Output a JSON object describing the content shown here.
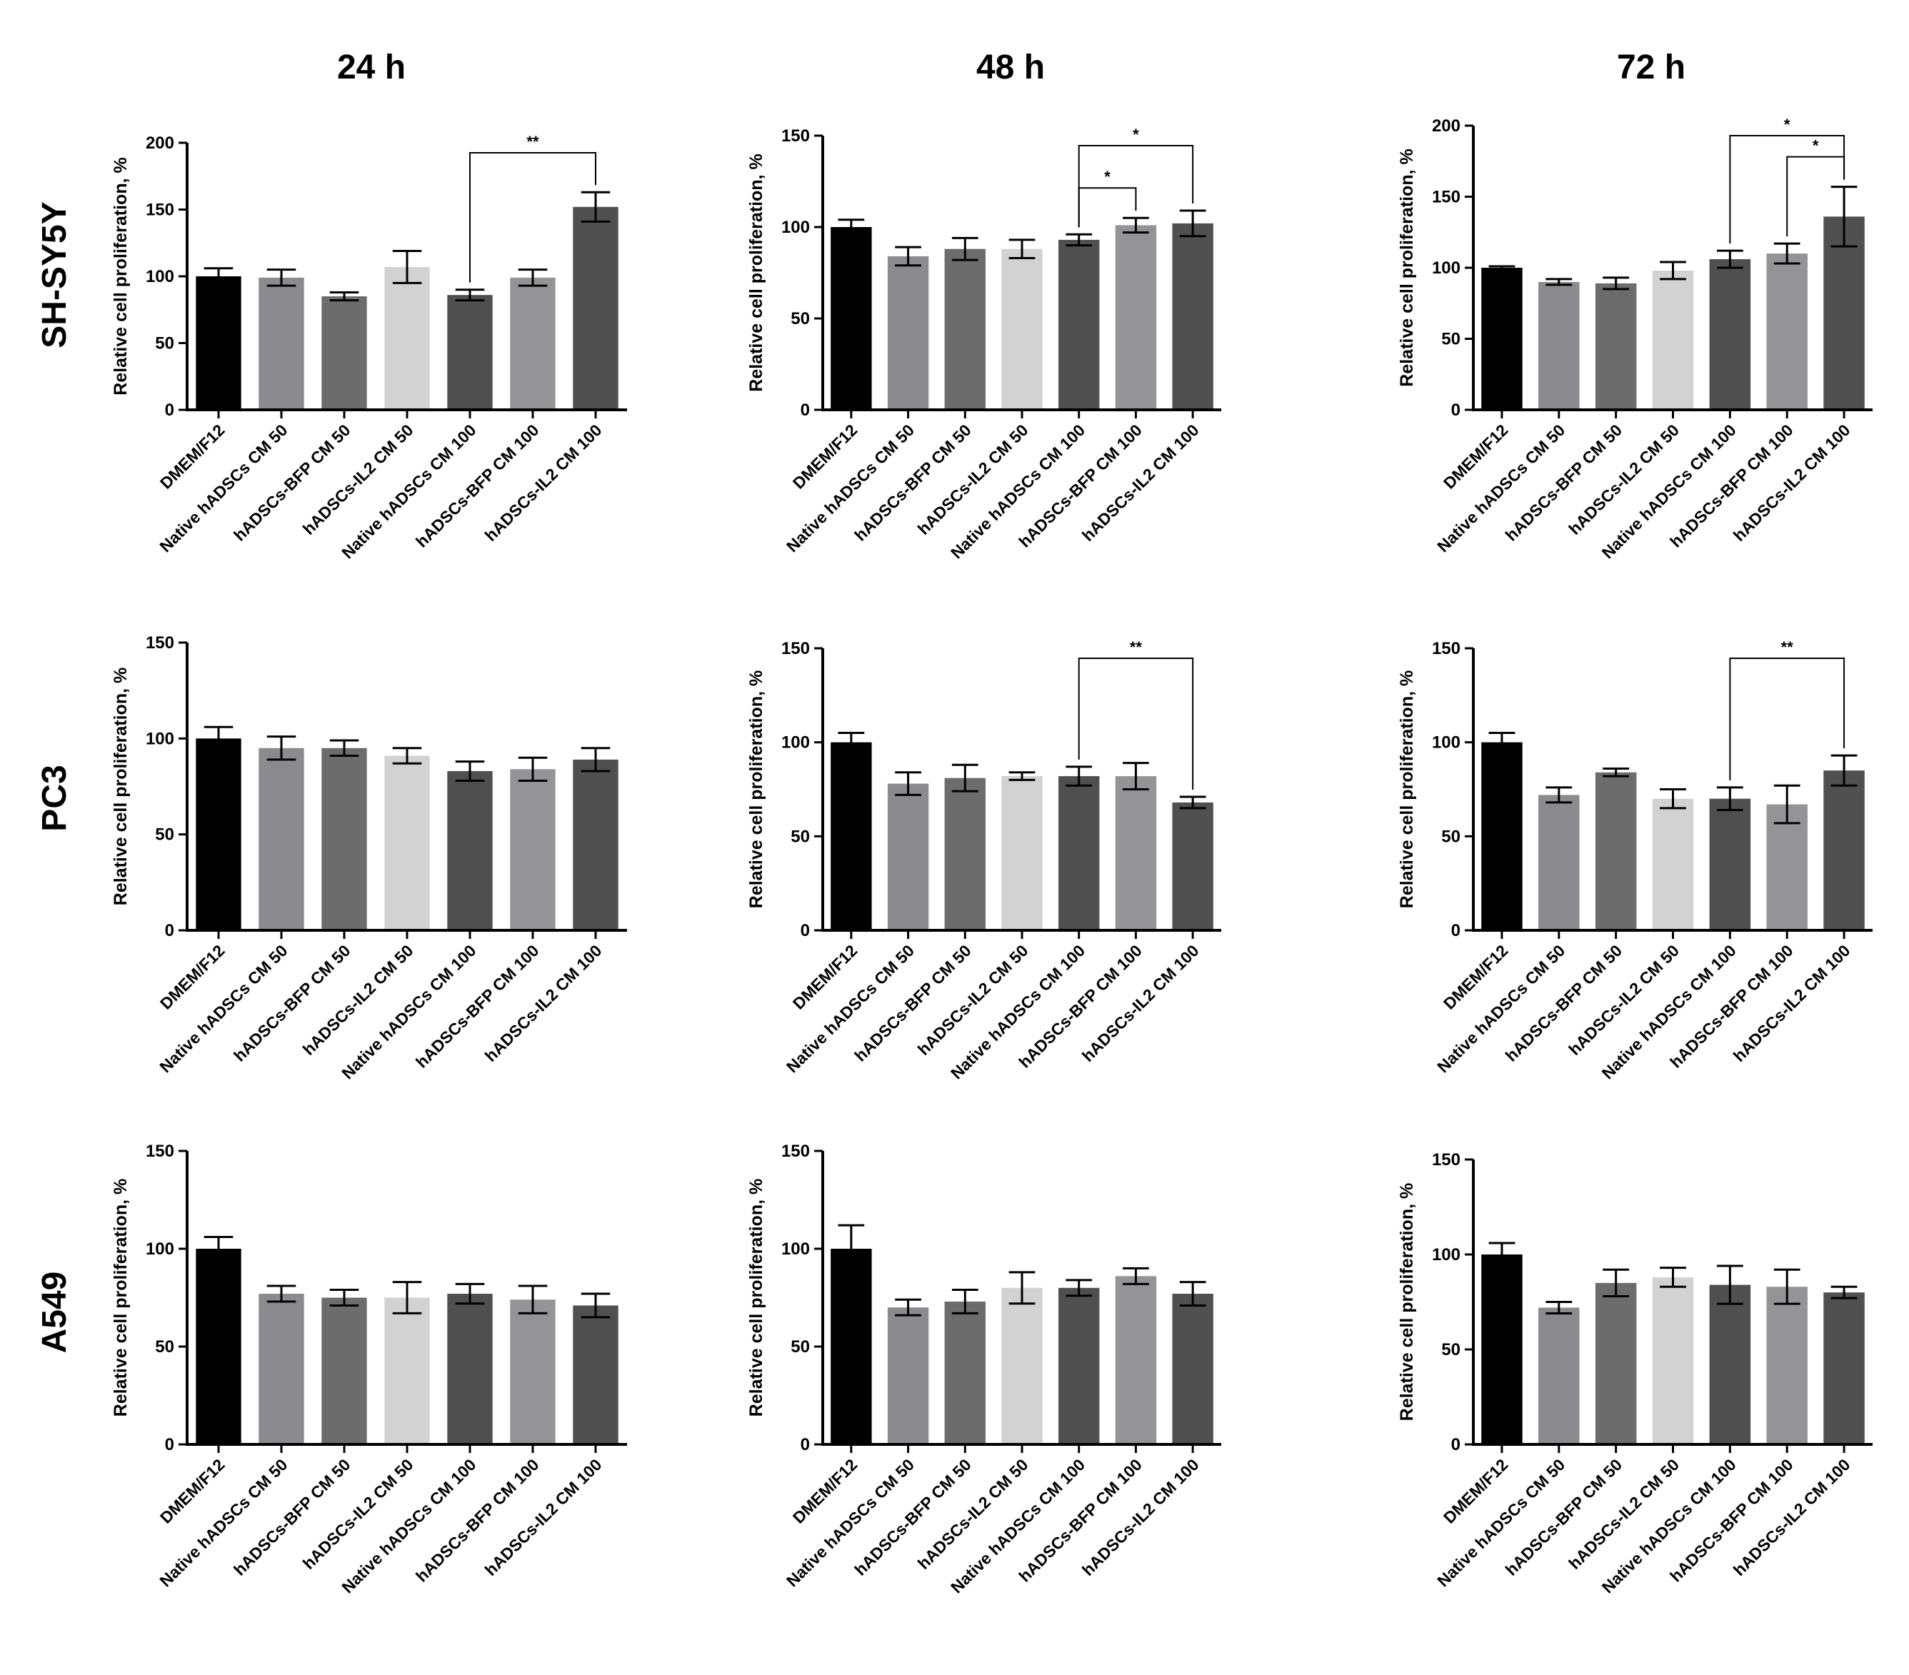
{
  "figure": {
    "column_titles": [
      "24 h",
      "48 h",
      "72 h"
    ],
    "row_titles": [
      "SH-SY5Y",
      "PC3",
      "A549"
    ],
    "colors": {
      "DMEM/F12": "#000000",
      "Native hADSCs CM 50": "#8b8b8f",
      "hADSCs-BFP CM 50": "#6c6c6c",
      "hADSCs-IL2 CM 50": "#d2d2d2",
      "Native hADSCs CM 100": "#4f4f4f",
      "hADSCs-BFP CM 100": "#949496",
      "hADSCs-IL2 CM 100": "#505050"
    }
  },
  "chart_data": [
    {
      "type": "bar",
      "panel": "SH-SY5Y 24 h",
      "categories": [
        "DMEM/F12",
        "Native hADSCs CM 50",
        "hADSCs-BFP CM 50",
        "hADSCs-IL2 CM 50",
        "Native hADSCs CM 100",
        "hADSCs-BFP CM 100",
        "hADSCs-IL2 CM 100"
      ],
      "values": [
        100,
        99,
        85,
        107,
        86,
        99,
        152
      ],
      "errors": [
        6,
        6,
        3,
        12,
        4,
        6,
        11
      ],
      "ylabel": "Relative cell proliferation, %",
      "ylim": [
        0,
        200
      ],
      "yticks": [
        0,
        50,
        100,
        150,
        200
      ],
      "significance": [
        {
          "from": 4,
          "to": 6,
          "label": "**"
        }
      ]
    },
    {
      "type": "bar",
      "panel": "SH-SY5Y 48 h",
      "categories": [
        "DMEM/F12",
        "Native hADSCs CM 50",
        "hADSCs-BFP CM 50",
        "hADSCs-IL2 CM 50",
        "Native hADSCs CM 100",
        "hADSCs-BFP CM 100",
        "hADSCs-IL2 CM 100"
      ],
      "values": [
        100,
        84,
        88,
        88,
        93,
        101,
        102
      ],
      "errors": [
        4,
        5,
        6,
        5,
        3,
        4,
        7
      ],
      "ylabel": "Relative cell proliferation, %",
      "ylim": [
        0,
        150
      ],
      "yticks": [
        0,
        50,
        100,
        150
      ],
      "significance": [
        {
          "from": 4,
          "to": 5,
          "label": "*"
        },
        {
          "from": 4,
          "to": 6,
          "label": "*"
        }
      ]
    },
    {
      "type": "bar",
      "panel": "SH-SY5Y 72 h",
      "categories": [
        "DMEM/F12",
        "Native hADSCs CM 50",
        "hADSCs-BFP CM 50",
        "hADSCs-IL2 CM 50",
        "Native hADSCs CM 100",
        "hADSCs-BFP CM 100",
        "hADSCs-IL2 CM 100"
      ],
      "values": [
        100,
        90,
        89,
        98,
        106,
        110,
        136
      ],
      "errors": [
        1,
        2,
        4,
        6,
        6,
        7,
        21
      ],
      "ylabel": "Relative cell proliferation, %",
      "ylim": [
        0,
        200
      ],
      "yticks": [
        0,
        50,
        100,
        150,
        200
      ],
      "significance": [
        {
          "from": 5,
          "to": 6,
          "label": "*"
        },
        {
          "from": 4,
          "to": 6,
          "label": "*"
        }
      ]
    },
    {
      "type": "bar",
      "panel": "PC3 24 h",
      "categories": [
        "DMEM/F12",
        "Native hADSCs CM 50",
        "hADSCs-BFP CM 50",
        "hADSCs-IL2 CM 50",
        "Native hADSCs CM 100",
        "hADSCs-BFP CM 100",
        "hADSCs-IL2 CM 100"
      ],
      "values": [
        100,
        95,
        95,
        91,
        83,
        84,
        89
      ],
      "errors": [
        6,
        6,
        4,
        4,
        5,
        6,
        6
      ],
      "ylabel": "Relative cell proliferation, %",
      "ylim": [
        0,
        150
      ],
      "yticks": [
        0,
        50,
        100,
        150
      ],
      "significance": []
    },
    {
      "type": "bar",
      "panel": "PC3 48 h",
      "categories": [
        "DMEM/F12",
        "Native hADSCs CM 50",
        "hADSCs-BFP CM 50",
        "hADSCs-IL2 CM 50",
        "Native hADSCs CM 100",
        "hADSCs-BFP CM 100",
        "hADSCs-IL2 CM 100"
      ],
      "values": [
        100,
        78,
        81,
        82,
        82,
        82,
        68
      ],
      "errors": [
        5,
        6,
        7,
        2,
        5,
        7,
        3
      ],
      "ylabel": "Relative cell proliferation, %",
      "ylim": [
        0,
        150
      ],
      "yticks": [
        0,
        50,
        100,
        150
      ],
      "significance": [
        {
          "from": 4,
          "to": 6,
          "label": "**"
        }
      ]
    },
    {
      "type": "bar",
      "panel": "PC3 72 h",
      "categories": [
        "DMEM/F12",
        "Native hADSCs CM 50",
        "hADSCs-BFP CM 50",
        "hADSCs-IL2 CM 50",
        "Native hADSCs CM 100",
        "hADSCs-BFP CM 100",
        "hADSCs-IL2 CM 100"
      ],
      "values": [
        100,
        72,
        84,
        70,
        70,
        67,
        85
      ],
      "errors": [
        5,
        4,
        2,
        5,
        6,
        10,
        8
      ],
      "ylabel": "Relative cell proliferation, %",
      "ylim": [
        0,
        150
      ],
      "yticks": [
        0,
        50,
        100,
        150
      ],
      "significance": [
        {
          "from": 4,
          "to": 6,
          "label": "**"
        }
      ]
    },
    {
      "type": "bar",
      "panel": "A549 24 h",
      "categories": [
        "DMEM/F12",
        "Native hADSCs CM 50",
        "hADSCs-BFP CM 50",
        "hADSCs-IL2 CM 50",
        "Native hADSCs CM 100",
        "hADSCs-BFP CM 100",
        "hADSCs-IL2 CM 100"
      ],
      "values": [
        100,
        77,
        75,
        75,
        77,
        74,
        71
      ],
      "errors": [
        6,
        4,
        4,
        8,
        5,
        7,
        6
      ],
      "ylabel": "Relative cell proliferation, %",
      "ylim": [
        0,
        150
      ],
      "yticks": [
        0,
        50,
        100,
        150
      ],
      "significance": []
    },
    {
      "type": "bar",
      "panel": "A549 48 h",
      "categories": [
        "DMEM/F12",
        "Native hADSCs CM 50",
        "hADSCs-BFP CM 50",
        "hADSCs-IL2 CM 50",
        "Native hADSCs CM 100",
        "hADSCs-BFP CM 100",
        "hADSCs-IL2 CM 100"
      ],
      "values": [
        100,
        70,
        73,
        80,
        80,
        86,
        77
      ],
      "errors": [
        12,
        4,
        6,
        8,
        4,
        4,
        6
      ],
      "ylabel": "Relative cell proliferation, %",
      "ylim": [
        0,
        150
      ],
      "yticks": [
        0,
        50,
        100,
        150
      ],
      "significance": []
    },
    {
      "type": "bar",
      "panel": "A549 72 h",
      "categories": [
        "DMEM/F12",
        "Native hADSCs CM 50",
        "hADSCs-BFP CM 50",
        "hADSCs-IL2 CM 50",
        "Native hADSCs CM 100",
        "hADSCs-BFP CM 100",
        "hADSCs-IL2 CM 100"
      ],
      "values": [
        100,
        72,
        85,
        88,
        84,
        83,
        80
      ],
      "errors": [
        6,
        3,
        7,
        5,
        10,
        9,
        3
      ],
      "ylabel": "Relative cell proliferation, %",
      "ylim": [
        0,
        150
      ],
      "yticks": [
        0,
        50,
        100,
        150
      ],
      "significance": []
    }
  ]
}
